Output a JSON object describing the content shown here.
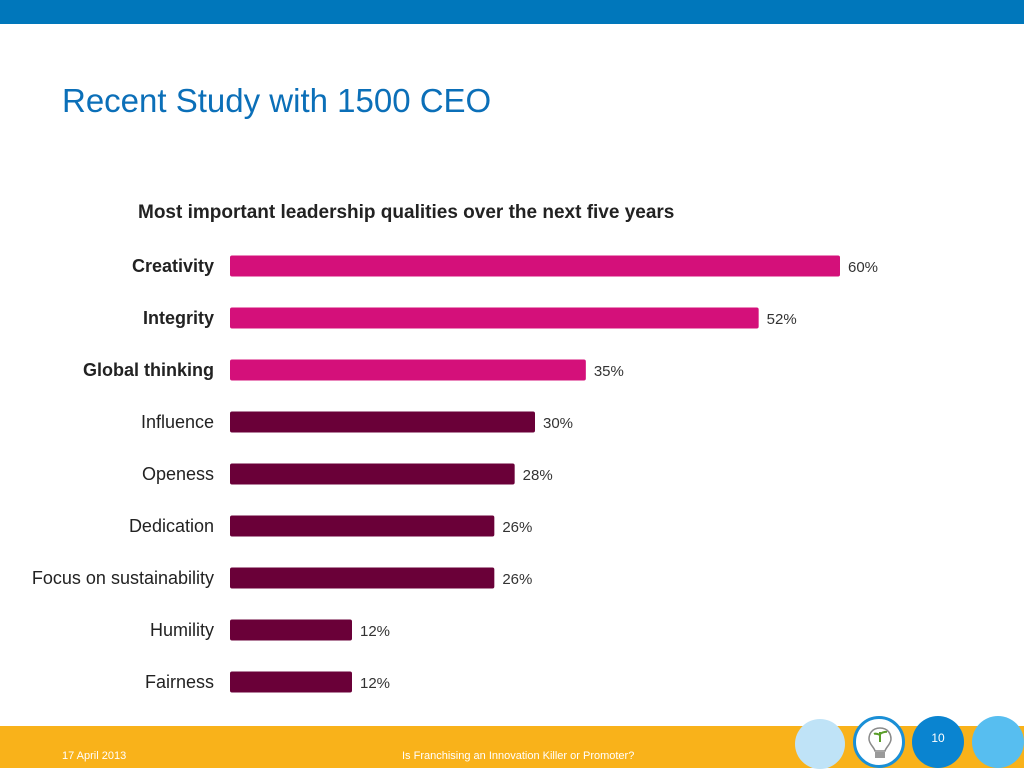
{
  "slide": {
    "title": "Recent Study with 1500 CEO",
    "footer_date": "17 April 2013",
    "footer_center": "Is Franchising an Innovation Killer or Promoter?",
    "page_number": "10"
  },
  "colors": {
    "top_bar": "#0077bb",
    "footer": "#f9b21a",
    "title": "#0b6fb8",
    "highlight_bar": "#d4107a",
    "standard_bar": "#6a0038"
  },
  "chart_data": {
    "type": "bar",
    "orientation": "horizontal",
    "title": "Most important leadership qualities over the next five years",
    "categories": [
      "Creativity",
      "Integrity",
      "Global thinking",
      "Influence",
      "Openess",
      "Dedication",
      "Focus on sustainability",
      "Humility",
      "Fairness"
    ],
    "values": [
      60,
      52,
      35,
      30,
      28,
      26,
      26,
      12,
      12
    ],
    "value_labels": [
      "60%",
      "52%",
      "35%",
      "30%",
      "28%",
      "26%",
      "26%",
      "12%",
      "12%"
    ],
    "highlighted": [
      true,
      true,
      true,
      false,
      false,
      false,
      false,
      false,
      false
    ],
    "xlim": [
      0,
      60
    ],
    "unit": "%"
  }
}
